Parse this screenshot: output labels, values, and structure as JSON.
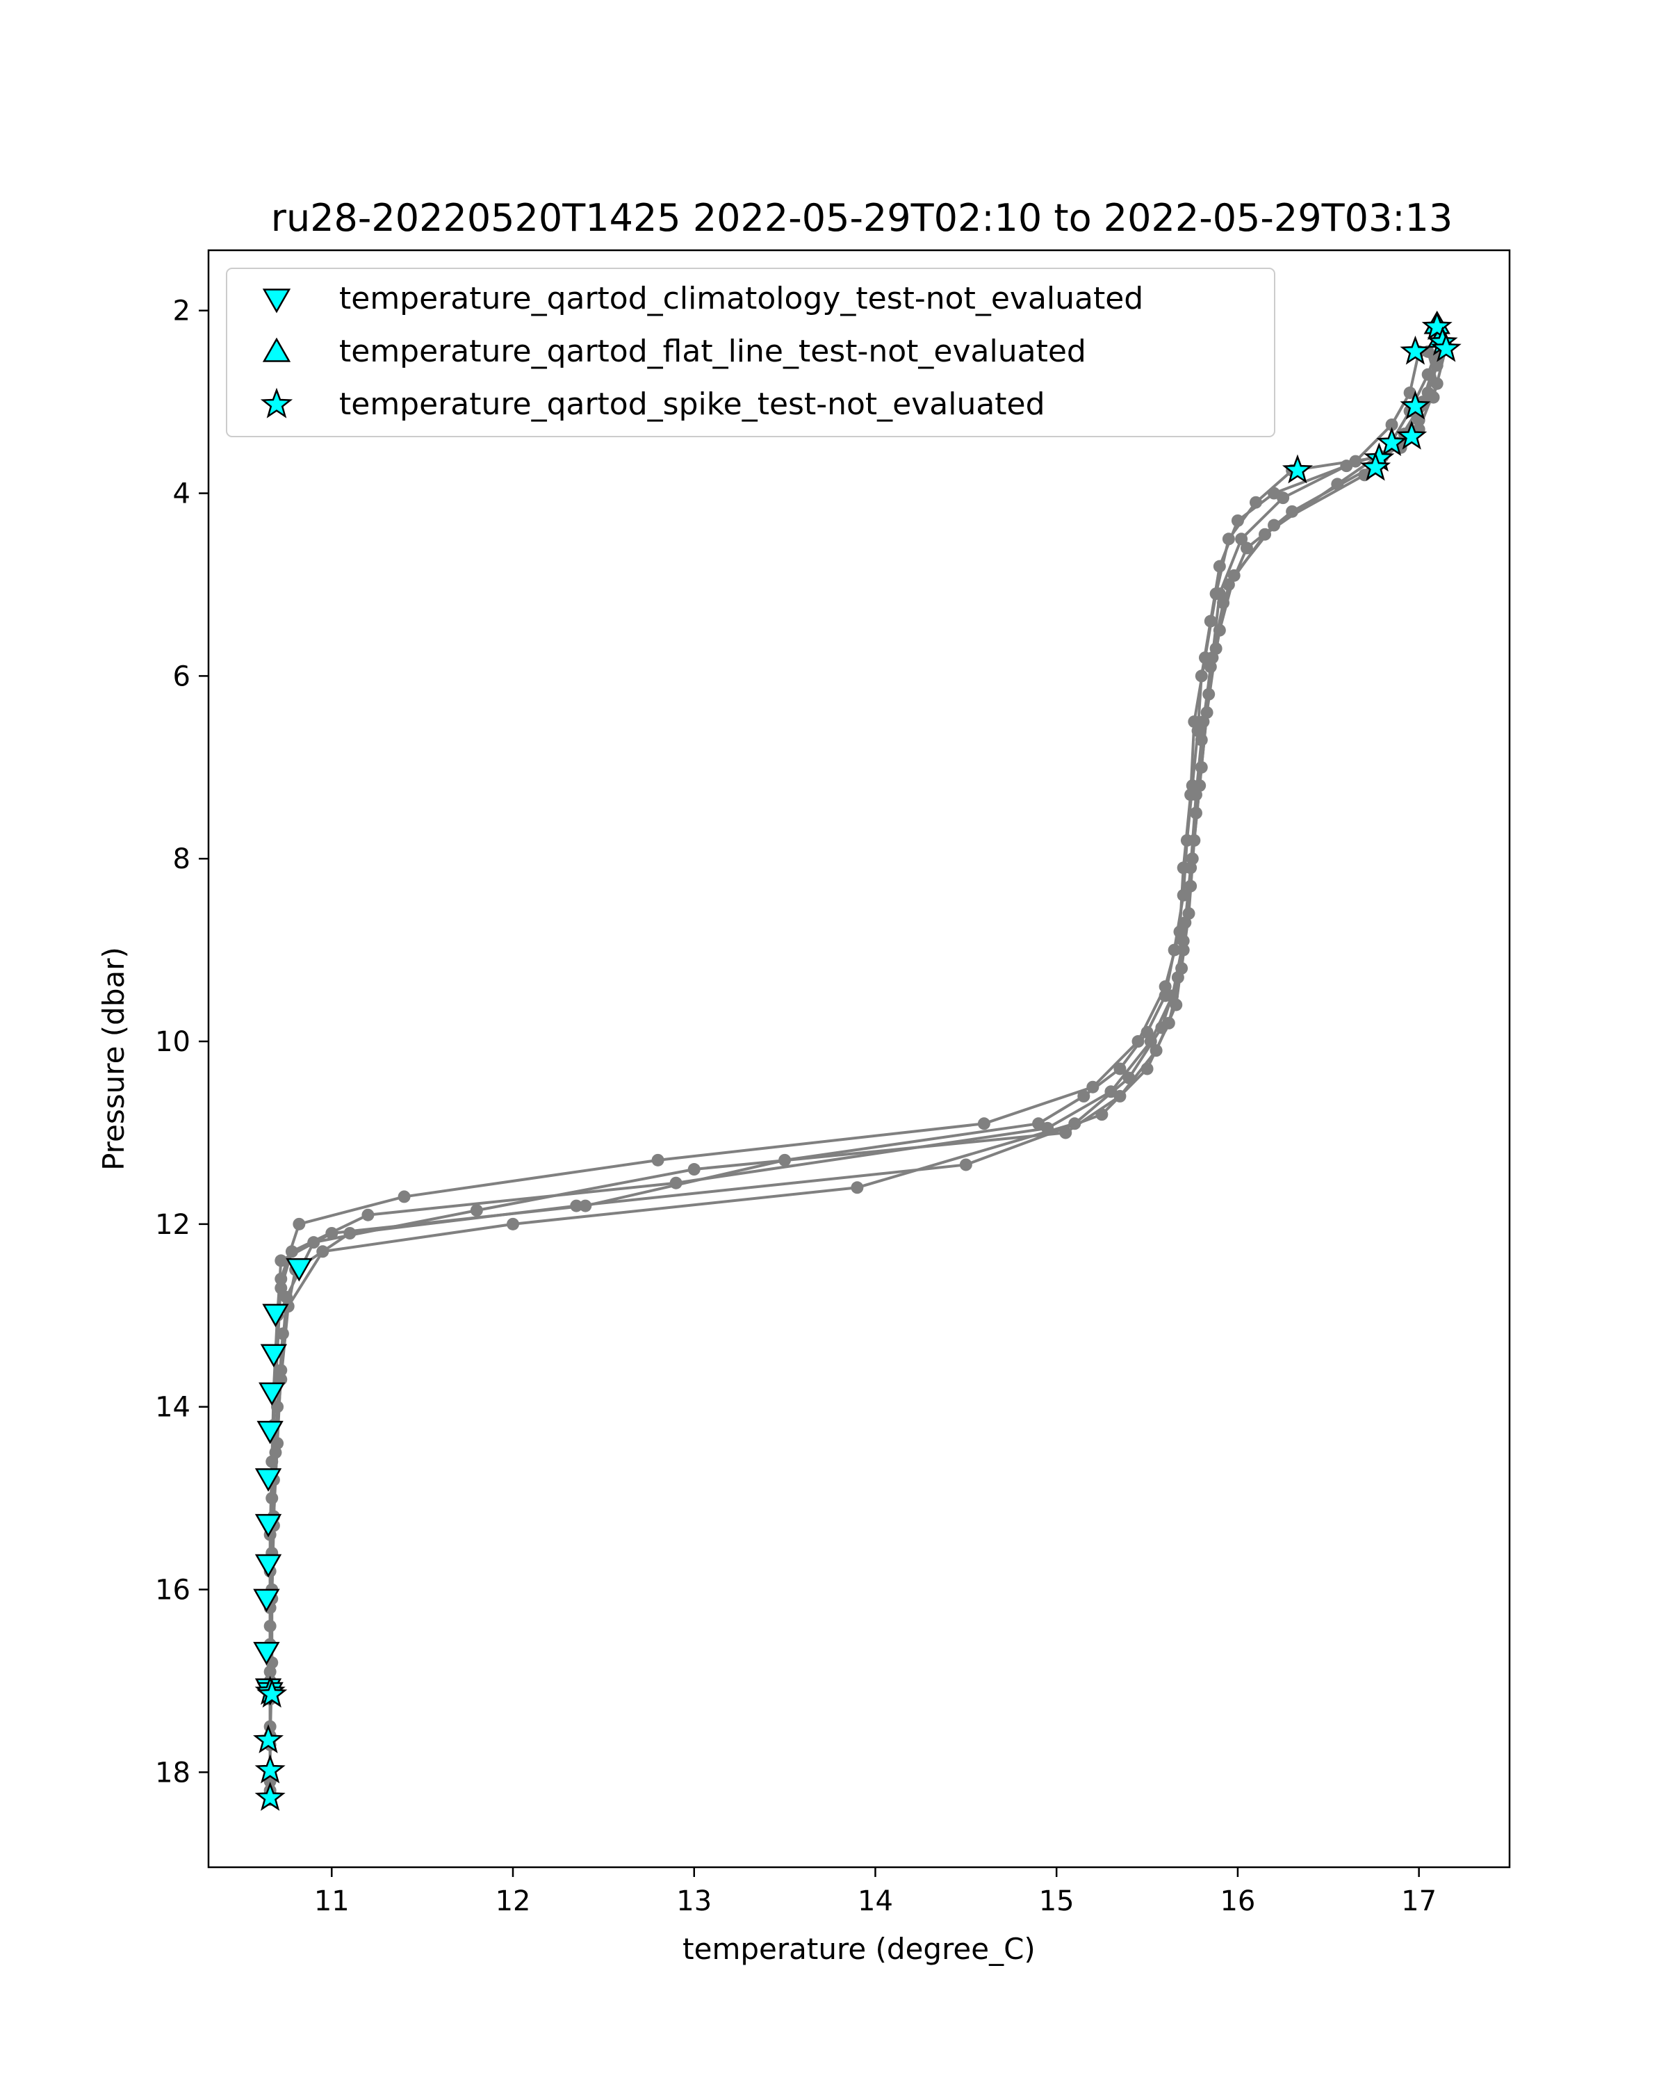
{
  "chart_data": {
    "type": "scatter",
    "title": "ru28-20220520T1425 2022-05-29T02:10 to 2022-05-29T03:13",
    "xlabel": "temperature (degree_C)",
    "ylabel": "Pressure (dbar)",
    "xlim": [
      10.32,
      17.5
    ],
    "ylim": [
      19.04,
      1.34
    ],
    "y_inverted": true,
    "x_ticks": [
      11,
      12,
      13,
      14,
      15,
      16,
      17
    ],
    "y_ticks": [
      2,
      4,
      6,
      8,
      10,
      12,
      14,
      16,
      18
    ],
    "grid": false,
    "legend_position": "top-left",
    "profile_color": "#808080",
    "flag_color": "#00ffff",
    "profiles": [
      {
        "points": [
          [
            17.08,
            2.2
          ],
          [
            17.12,
            2.35
          ],
          [
            17.1,
            2.6
          ],
          [
            17.05,
            2.9
          ],
          [
            17.0,
            3.2
          ],
          [
            16.9,
            3.5
          ],
          [
            16.6,
            3.7
          ],
          [
            16.2,
            4.0
          ],
          [
            16.0,
            4.3
          ],
          [
            15.9,
            4.8
          ],
          [
            15.85,
            5.4
          ],
          [
            15.8,
            6.0
          ],
          [
            15.78,
            6.6
          ],
          [
            15.75,
            7.2
          ],
          [
            15.72,
            7.8
          ],
          [
            15.7,
            8.4
          ],
          [
            15.65,
            9.0
          ],
          [
            15.6,
            9.5
          ],
          [
            15.5,
            9.9
          ],
          [
            15.35,
            10.3
          ],
          [
            15.15,
            10.6
          ],
          [
            14.9,
            10.9
          ],
          [
            13.5,
            11.3
          ],
          [
            12.4,
            11.8
          ],
          [
            11.0,
            12.1
          ],
          [
            10.72,
            12.4
          ],
          [
            10.7,
            13.0
          ],
          [
            10.68,
            13.8
          ],
          [
            10.67,
            14.6
          ],
          [
            10.66,
            15.4
          ],
          [
            10.66,
            16.2
          ],
          [
            10.66,
            17.0
          ],
          [
            10.66,
            17.6
          ],
          [
            10.66,
            18.2
          ]
        ]
      },
      {
        "points": [
          [
            17.12,
            2.3
          ],
          [
            17.05,
            2.7
          ],
          [
            16.95,
            3.1
          ],
          [
            16.8,
            3.6
          ],
          [
            16.3,
            3.75
          ],
          [
            16.1,
            4.1
          ],
          [
            15.95,
            4.5
          ],
          [
            15.88,
            5.1
          ],
          [
            15.82,
            5.8
          ],
          [
            15.76,
            6.5
          ],
          [
            15.74,
            7.3
          ],
          [
            15.7,
            8.1
          ],
          [
            15.68,
            8.8
          ],
          [
            15.6,
            9.4
          ],
          [
            15.45,
            10.0
          ],
          [
            15.2,
            10.5
          ],
          [
            14.6,
            10.9
          ],
          [
            12.8,
            11.3
          ],
          [
            11.4,
            11.7
          ],
          [
            10.82,
            12.0
          ],
          [
            10.72,
            12.6
          ],
          [
            10.7,
            13.4
          ],
          [
            10.68,
            14.2
          ],
          [
            10.67,
            15.0
          ],
          [
            10.66,
            15.8
          ],
          [
            10.66,
            16.6
          ],
          [
            10.66,
            17.2
          ]
        ]
      },
      {
        "points": [
          [
            17.05,
            2.45
          ],
          [
            17.1,
            2.8
          ],
          [
            17.0,
            3.3
          ],
          [
            16.75,
            3.7
          ],
          [
            16.3,
            4.2
          ],
          [
            16.05,
            4.6
          ],
          [
            15.92,
            5.2
          ],
          [
            15.85,
            5.9
          ],
          [
            15.8,
            6.7
          ],
          [
            15.77,
            7.5
          ],
          [
            15.74,
            8.3
          ],
          [
            15.7,
            9.0
          ],
          [
            15.66,
            9.6
          ],
          [
            15.55,
            10.1
          ],
          [
            15.35,
            10.6
          ],
          [
            15.05,
            11.0
          ],
          [
            13.0,
            11.4
          ],
          [
            11.8,
            11.85
          ],
          [
            10.9,
            12.2
          ],
          [
            10.75,
            12.8
          ],
          [
            10.72,
            13.6
          ],
          [
            10.7,
            14.4
          ],
          [
            10.68,
            15.2
          ],
          [
            10.67,
            16.0
          ],
          [
            10.67,
            16.8
          ],
          [
            10.66,
            17.7
          ],
          [
            10.66,
            18.3
          ]
        ]
      },
      {
        "points": [
          [
            17.15,
            2.4
          ],
          [
            17.08,
            2.95
          ],
          [
            16.92,
            3.35
          ],
          [
            16.7,
            3.8
          ],
          [
            16.2,
            4.35
          ],
          [
            15.98,
            4.9
          ],
          [
            15.9,
            5.5
          ],
          [
            15.84,
            6.2
          ],
          [
            15.8,
            7.0
          ],
          [
            15.76,
            7.8
          ],
          [
            15.73,
            8.6
          ],
          [
            15.69,
            9.2
          ],
          [
            15.62,
            9.8
          ],
          [
            15.5,
            10.3
          ],
          [
            15.25,
            10.8
          ],
          [
            14.5,
            11.35
          ],
          [
            12.35,
            11.8
          ],
          [
            11.1,
            12.1
          ],
          [
            10.8,
            12.5
          ],
          [
            10.73,
            13.2
          ],
          [
            10.7,
            14.0
          ],
          [
            10.68,
            14.8
          ],
          [
            10.67,
            15.6
          ],
          [
            10.66,
            16.4
          ],
          [
            10.66,
            17.1
          ]
        ]
      },
      {
        "points": [
          [
            17.1,
            2.5
          ],
          [
            17.02,
            3.0
          ],
          [
            16.88,
            3.45
          ],
          [
            16.55,
            3.9
          ],
          [
            16.15,
            4.45
          ],
          [
            15.95,
            5.0
          ],
          [
            15.88,
            5.7
          ],
          [
            15.83,
            6.4
          ],
          [
            15.79,
            7.2
          ],
          [
            15.75,
            8.0
          ],
          [
            15.71,
            8.7
          ],
          [
            15.67,
            9.3
          ],
          [
            15.58,
            9.85
          ],
          [
            15.4,
            10.4
          ],
          [
            15.1,
            10.9
          ],
          [
            13.9,
            11.6
          ],
          [
            12.0,
            12.0
          ],
          [
            10.95,
            12.3
          ],
          [
            10.76,
            12.9
          ],
          [
            10.72,
            13.7
          ],
          [
            10.69,
            14.5
          ],
          [
            10.68,
            15.3
          ],
          [
            10.67,
            16.1
          ],
          [
            10.66,
            16.9
          ],
          [
            10.66,
            17.5
          ],
          [
            10.66,
            18.1
          ]
        ]
      },
      {
        "points": [
          [
            17.0,
            2.45
          ],
          [
            16.95,
            2.9
          ],
          [
            16.85,
            3.25
          ],
          [
            16.65,
            3.65
          ],
          [
            16.25,
            4.05
          ],
          [
            16.02,
            4.5
          ],
          [
            15.9,
            5.1
          ],
          [
            15.86,
            5.8
          ],
          [
            15.81,
            6.5
          ],
          [
            15.77,
            7.3
          ],
          [
            15.74,
            8.1
          ],
          [
            15.7,
            8.9
          ],
          [
            15.64,
            9.5
          ],
          [
            15.52,
            10.0
          ],
          [
            15.3,
            10.55
          ],
          [
            14.95,
            10.95
          ],
          [
            12.9,
            11.55
          ],
          [
            11.2,
            11.9
          ],
          [
            10.78,
            12.3
          ],
          [
            10.72,
            12.7
          ]
        ]
      }
    ],
    "series": [
      {
        "name": "temperature_qartod_climatology_test-not_evaluated",
        "marker": "triangle-down",
        "points": [
          [
            10.82,
            12.48
          ],
          [
            10.69,
            12.98
          ],
          [
            10.68,
            13.42
          ],
          [
            10.67,
            13.84
          ],
          [
            10.66,
            14.26
          ],
          [
            10.65,
            14.78
          ],
          [
            10.65,
            15.28
          ],
          [
            10.65,
            15.72
          ],
          [
            10.64,
            16.1
          ],
          [
            10.64,
            16.68
          ],
          [
            10.65,
            17.08
          ],
          [
            10.66,
            17.12
          ]
        ]
      },
      {
        "name": "temperature_qartod_flat_line_test-not_evaluated",
        "marker": "triangle-up",
        "points": [
          [
            17.1,
            2.15
          ],
          [
            17.12,
            2.3
          ]
        ]
      },
      {
        "name": "temperature_qartod_spike_test-not_evaluated",
        "marker": "star",
        "points": [
          [
            17.1,
            2.18
          ],
          [
            17.13,
            2.35
          ],
          [
            17.15,
            2.42
          ],
          [
            16.98,
            2.45
          ],
          [
            16.98,
            3.05
          ],
          [
            16.96,
            3.38
          ],
          [
            16.85,
            3.45
          ],
          [
            16.78,
            3.62
          ],
          [
            16.76,
            3.72
          ],
          [
            16.33,
            3.75
          ],
          [
            10.66,
            17.12
          ],
          [
            10.67,
            17.15
          ],
          [
            10.65,
            17.65
          ],
          [
            10.66,
            17.98
          ],
          [
            10.66,
            18.28
          ]
        ]
      }
    ]
  }
}
